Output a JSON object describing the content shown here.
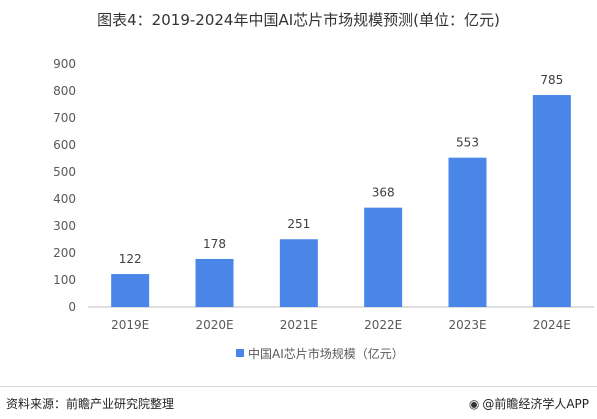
{
  "title": "图表4：2019-2024年中国AI芯片市场规模预测(单位：亿元)",
  "source": "资料来源：前瞻产业研究院整理",
  "brand": "@前瞻经济学人APP",
  "chart_data": {
    "type": "bar",
    "categories": [
      "2019E",
      "2020E",
      "2021E",
      "2022E",
      "2023E",
      "2024E"
    ],
    "series": [
      {
        "name": "中国AI芯片市场规模（亿元）",
        "values": [
          122,
          178,
          251,
          368,
          553,
          785
        ],
        "color": "#4a86e8"
      }
    ],
    "yticks": [
      "0",
      "100",
      "200",
      "300",
      "400",
      "500",
      "600",
      "700",
      "800",
      "900"
    ],
    "ylim": [
      0,
      900
    ],
    "grid": false,
    "legend": "bottom"
  }
}
